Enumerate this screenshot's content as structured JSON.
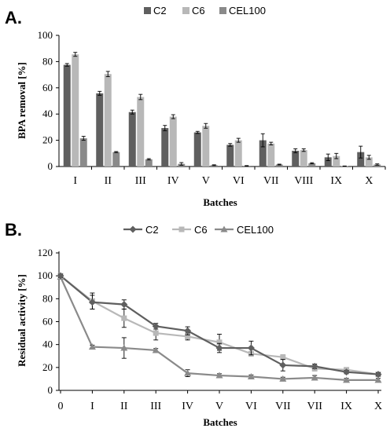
{
  "chart_data": [
    {
      "panel": "A.",
      "type": "bar",
      "categories": [
        "I",
        "II",
        "III",
        "IV",
        "V",
        "VI",
        "VII",
        "VIII",
        "IX",
        "X"
      ],
      "series": [
        {
          "name": "C2",
          "color": "#5f5f5f",
          "values": [
            77.5,
            55.8,
            41.5,
            29.3,
            26.0,
            16.5,
            20.0,
            12.0,
            7.0,
            11.0
          ],
          "errors": [
            1.0,
            1.5,
            1.5,
            2.0,
            0.8,
            1.0,
            5.0,
            1.5,
            2.5,
            4.5
          ]
        },
        {
          "name": "C6",
          "color": "#b8b8b8",
          "values": [
            85.5,
            70.5,
            53.0,
            38.0,
            31.0,
            20.0,
            17.5,
            12.5,
            8.0,
            7.0
          ],
          "errors": [
            1.5,
            2.0,
            2.0,
            1.5,
            1.8,
            1.5,
            1.0,
            1.0,
            2.0,
            1.5
          ]
        },
        {
          "name": "CEL100",
          "color": "#8a8a8a",
          "values": [
            21.5,
            11.0,
            5.5,
            2.0,
            1.0,
            0.5,
            1.5,
            2.5,
            0.3,
            1.5
          ],
          "errors": [
            1.5,
            0.4,
            0.5,
            1.0,
            0.3,
            0.2,
            0.3,
            0.4,
            0.1,
            0.5
          ]
        }
      ],
      "ylabel": "BPA removal [%]",
      "xlabel": "Batches",
      "ylim": [
        0,
        100
      ],
      "yticks": [
        0,
        20,
        40,
        60,
        80,
        100
      ],
      "legend_position": "top-center",
      "grid": false
    },
    {
      "panel": "B.",
      "type": "line",
      "categories": [
        "0",
        "I",
        "II",
        "III",
        "IV",
        "V",
        "VI",
        "VII",
        "VII",
        "IX",
        "X"
      ],
      "series": [
        {
          "name": "C2",
          "color": "#5f5f5f",
          "marker": "diamond",
          "values": [
            100,
            77,
            75,
            56,
            52,
            37,
            37,
            22,
            21,
            16,
            14
          ],
          "errors": [
            1.5,
            6,
            4,
            2.5,
            3.5,
            4,
            6,
            5,
            2,
            1.5,
            1.5
          ]
        },
        {
          "name": "C6",
          "color": "#b8b8b8",
          "marker": "square",
          "values": [
            100,
            78,
            63,
            50,
            47,
            42,
            32,
            29,
            19,
            18,
            14
          ],
          "errors": [
            1.5,
            7,
            8,
            6,
            3,
            7,
            2,
            2,
            2,
            1.5,
            1.5
          ]
        },
        {
          "name": "CEL100",
          "color": "#8a8a8a",
          "marker": "triangle",
          "values": [
            99,
            38,
            37,
            35,
            15,
            13,
            12,
            10,
            11,
            9,
            9
          ],
          "errors": [
            1.5,
            1.5,
            9,
            1.5,
            3,
            1.5,
            1.5,
            1.5,
            2,
            1.5,
            1.5
          ]
        }
      ],
      "ylabel": "Residual activity [%]",
      "xlabel": "Batches",
      "ylim": [
        0,
        120
      ],
      "yticks": [
        0,
        20,
        40,
        60,
        80,
        100,
        120
      ],
      "legend_position": "top-center",
      "grid": false
    }
  ]
}
